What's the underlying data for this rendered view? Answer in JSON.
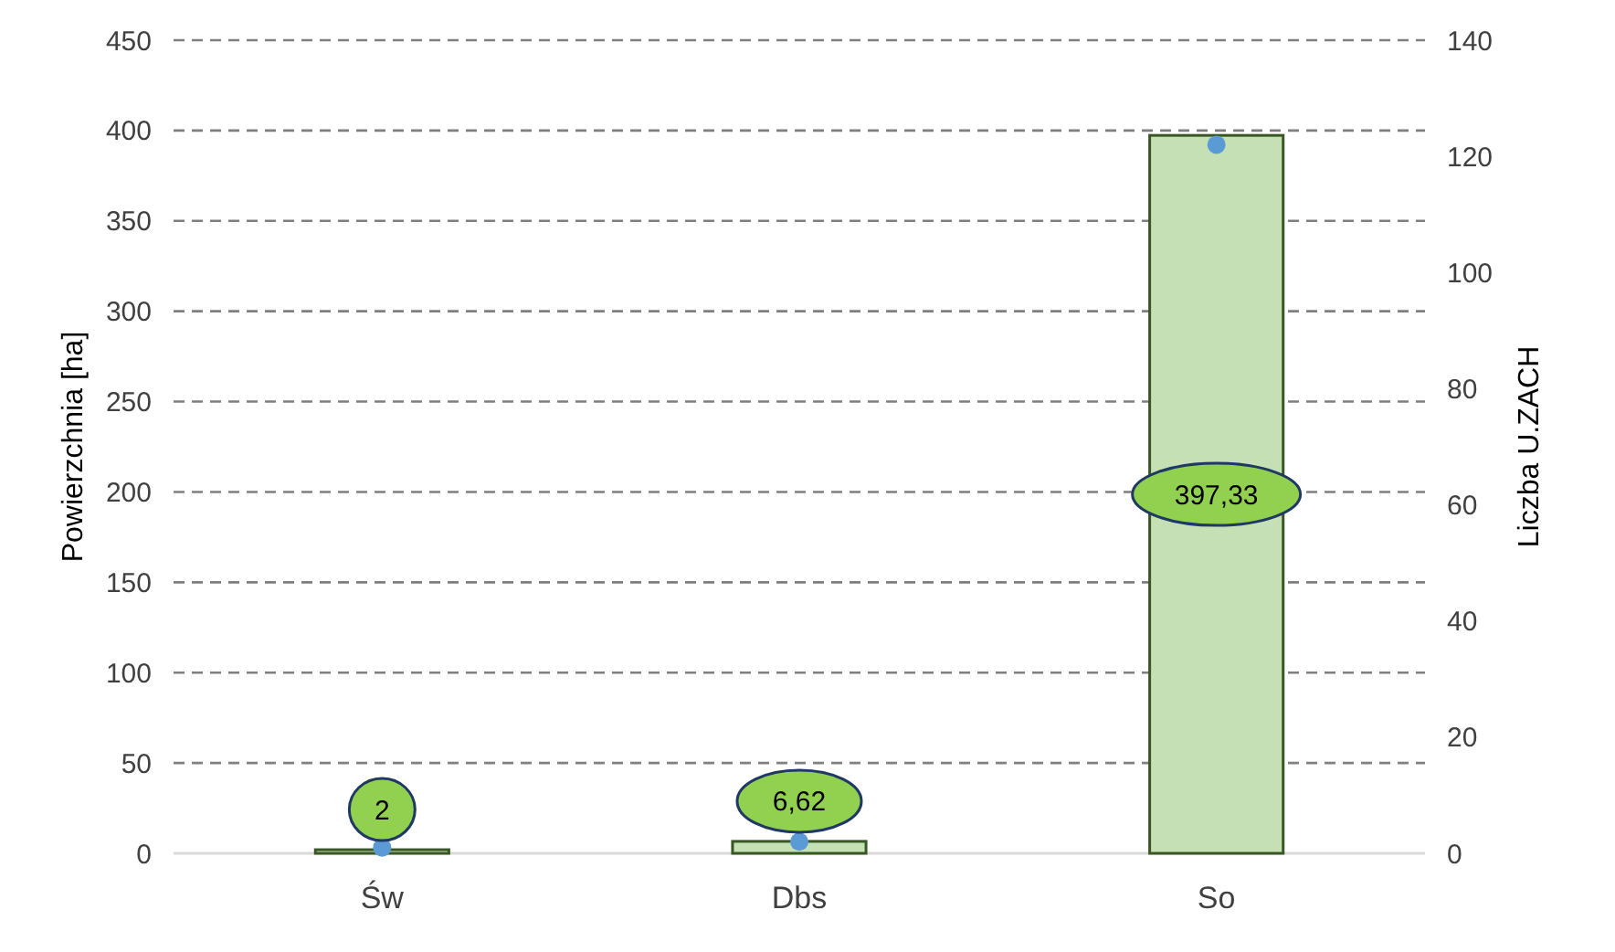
{
  "chart_data": {
    "type": "bar",
    "categories": [
      "Św",
      "Dbs",
      "So"
    ],
    "series": [
      {
        "color": "#c5e0b4",
        "values": [
          2,
          6.62,
          397.33
        ],
        "value_labels": [
          "2",
          "6,62",
          "397,33"
        ]
      },
      {
        "type": "scatter",
        "axis": "y2",
        "color": "#5b9bd5",
        "values": [
          1,
          2,
          122
        ]
      }
    ],
    "ylabel": "Powierzchnia [ha]",
    "y2label": "Liczba U.ZACH",
    "ylim": [
      0,
      450
    ],
    "yticks": [
      0,
      50,
      100,
      150,
      200,
      250,
      300,
      350,
      400,
      450
    ],
    "y2lim": [
      0,
      140
    ],
    "y2ticks": [
      0,
      20,
      40,
      60,
      80,
      100,
      120,
      140
    ],
    "grid": "y",
    "line_style": "dashed",
    "marker": "circle"
  }
}
